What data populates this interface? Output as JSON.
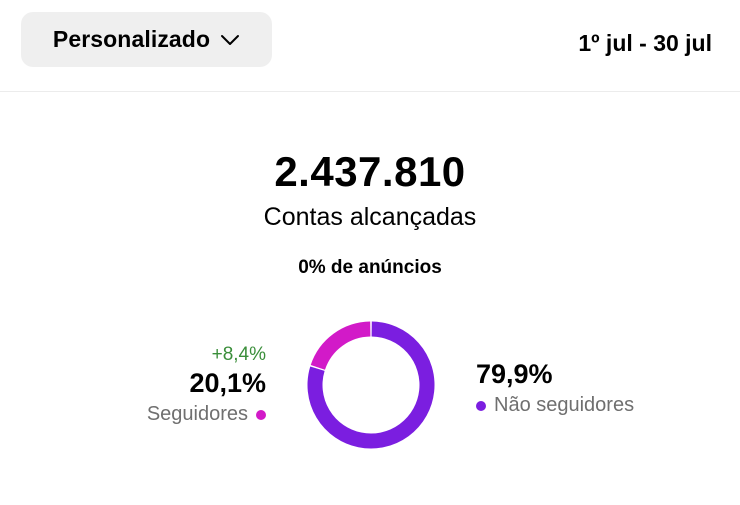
{
  "header": {
    "filter_label": "Personalizado",
    "date_range": "1º jul - 30 jul"
  },
  "summary": {
    "total": "2.437.810",
    "metric_label": "Contas alcançadas",
    "ads_share": "0% de anúncios"
  },
  "breakdown": {
    "followers": {
      "delta": "+8,4%",
      "percent": "20,1%",
      "label": "Seguidores",
      "value": 20.1,
      "color": "#d21ac8"
    },
    "non_followers": {
      "percent": "79,9%",
      "label": "Não seguidores",
      "value": 79.9,
      "color": "#7b1ee0"
    }
  },
  "icons": {
    "dropdown": "chevron-down-icon"
  }
}
